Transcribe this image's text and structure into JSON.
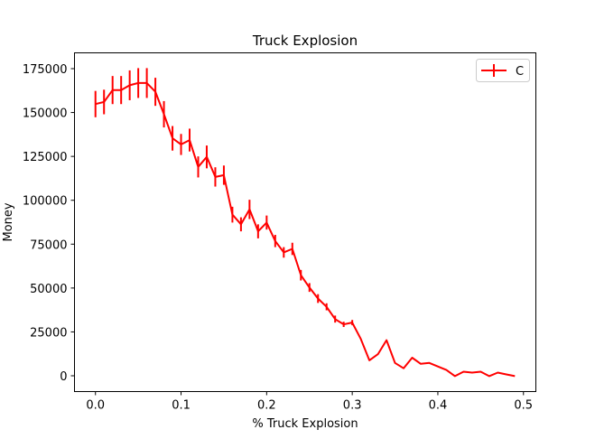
{
  "chart_data": {
    "type": "line",
    "title": "Truck Explosion",
    "xlabel": "% Truck Explosion",
    "ylabel": "Money",
    "xlim": [
      -0.0245,
      0.5145
    ],
    "ylim": [
      -9000,
      184000
    ],
    "xticks": [
      0.0,
      0.1,
      0.2,
      0.3,
      0.4,
      0.5
    ],
    "xtick_labels": [
      "0.0",
      "0.1",
      "0.2",
      "0.3",
      "0.4",
      "0.5"
    ],
    "yticks": [
      0,
      25000,
      50000,
      75000,
      100000,
      125000,
      150000,
      175000
    ],
    "ytick_labels": [
      "0",
      "25000",
      "50000",
      "75000",
      "100000",
      "125000",
      "150000",
      "175000"
    ],
    "grid": false,
    "legend_position": "top-right",
    "series": [
      {
        "name": "C",
        "color": "#ff0000",
        "x": [
          0.0,
          0.01,
          0.02,
          0.03,
          0.04,
          0.05,
          0.06,
          0.07,
          0.08,
          0.09,
          0.1,
          0.11,
          0.12,
          0.13,
          0.14,
          0.15,
          0.16,
          0.17,
          0.18,
          0.19,
          0.2,
          0.21,
          0.22,
          0.23,
          0.24,
          0.25,
          0.26,
          0.27,
          0.28,
          0.29,
          0.3,
          0.31,
          0.32,
          0.33,
          0.34,
          0.35,
          0.36,
          0.37,
          0.38,
          0.39,
          0.4,
          0.41,
          0.42,
          0.43,
          0.44,
          0.45,
          0.46,
          0.47,
          0.48,
          0.49
        ],
        "y": [
          154800,
          156000,
          162800,
          162800,
          165500,
          166800,
          166800,
          161800,
          149000,
          135300,
          131800,
          134300,
          119000,
          124700,
          113300,
          114300,
          91800,
          86300,
          94800,
          82300,
          87300,
          76800,
          70300,
          72300,
          57300,
          50300,
          44000,
          39300,
          32300,
          29300,
          30300,
          21000,
          8800,
          12300,
          20300,
          7300,
          4300,
          10300,
          6800,
          7300,
          5300,
          3300,
          -200,
          2300,
          1800,
          2300,
          -200,
          1800,
          800,
          -200
        ],
        "err": [
          7500,
          7000,
          8000,
          8000,
          8500,
          8500,
          8500,
          8000,
          7500,
          7000,
          6000,
          6500,
          6000,
          6500,
          5500,
          5500,
          4500,
          4000,
          5500,
          4000,
          4000,
          3500,
          3000,
          3500,
          3000,
          2500,
          2500,
          2000,
          2000,
          1500,
          1500,
          0,
          0,
          0,
          0,
          0,
          0,
          0,
          0,
          0,
          0,
          0,
          0,
          0,
          0,
          0,
          0,
          0,
          0,
          0
        ]
      }
    ]
  }
}
